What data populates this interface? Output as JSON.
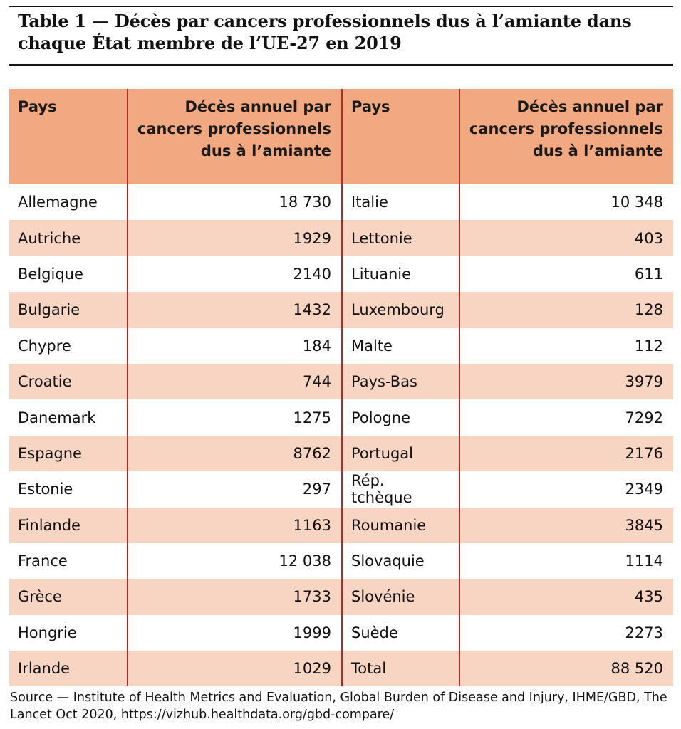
{
  "title": "Table 1 — Décès par cancers professionnels dus à l’amiante dans chaque État membre de l’UE-27 en 2019",
  "headers": {
    "country": "Pays",
    "deaths": "Décès annuel par cancers professionnels dus à l’amiante"
  },
  "left_rows": [
    {
      "country": "Allemagne",
      "deaths": "18 730"
    },
    {
      "country": "Autriche",
      "deaths": "1929"
    },
    {
      "country": "Belgique",
      "deaths": "2140"
    },
    {
      "country": "Bulgarie",
      "deaths": "1432"
    },
    {
      "country": "Chypre",
      "deaths": "184"
    },
    {
      "country": "Croatie",
      "deaths": "744"
    },
    {
      "country": "Danemark",
      "deaths": "1275"
    },
    {
      "country": "Espagne",
      "deaths": "8762"
    },
    {
      "country": "Estonie",
      "deaths": "297"
    },
    {
      "country": "Finlande",
      "deaths": "1163"
    },
    {
      "country": "France",
      "deaths": "12 038"
    },
    {
      "country": "Grèce",
      "deaths": "1733"
    },
    {
      "country": "Hongrie",
      "deaths": "1999"
    },
    {
      "country": "Irlande",
      "deaths": "1029"
    }
  ],
  "right_rows": [
    {
      "country": "Italie",
      "deaths": "10 348"
    },
    {
      "country": "Lettonie",
      "deaths": "403"
    },
    {
      "country": "Lituanie",
      "deaths": "611"
    },
    {
      "country": "Luxembourg",
      "deaths": "128"
    },
    {
      "country": "Malte",
      "deaths": "112"
    },
    {
      "country": "Pays-Bas",
      "deaths": "3979"
    },
    {
      "country": "Pologne",
      "deaths": "7292"
    },
    {
      "country": "Portugal",
      "deaths": "2176"
    },
    {
      "country": "Rép. tchèque",
      "deaths": "2349"
    },
    {
      "country": "Roumanie",
      "deaths": "3845"
    },
    {
      "country": "Slovaquie",
      "deaths": "1114"
    },
    {
      "country": "Slovénie",
      "deaths": "435"
    },
    {
      "country": "Suède",
      "deaths": "2273"
    },
    {
      "country": "Total",
      "deaths": "88 520"
    }
  ],
  "source": "Source — Institute of Health Metrics and Evaluation, Global Burden of Disease and Injury, IHME/GBD, The Lancet Oct 2020, https://vizhub.healthdata.org/gbd-compare/",
  "colors": {
    "header_bg": "#f2a982",
    "stripe_bg": "#f8d4c2",
    "divider": "#b12a2a"
  }
}
